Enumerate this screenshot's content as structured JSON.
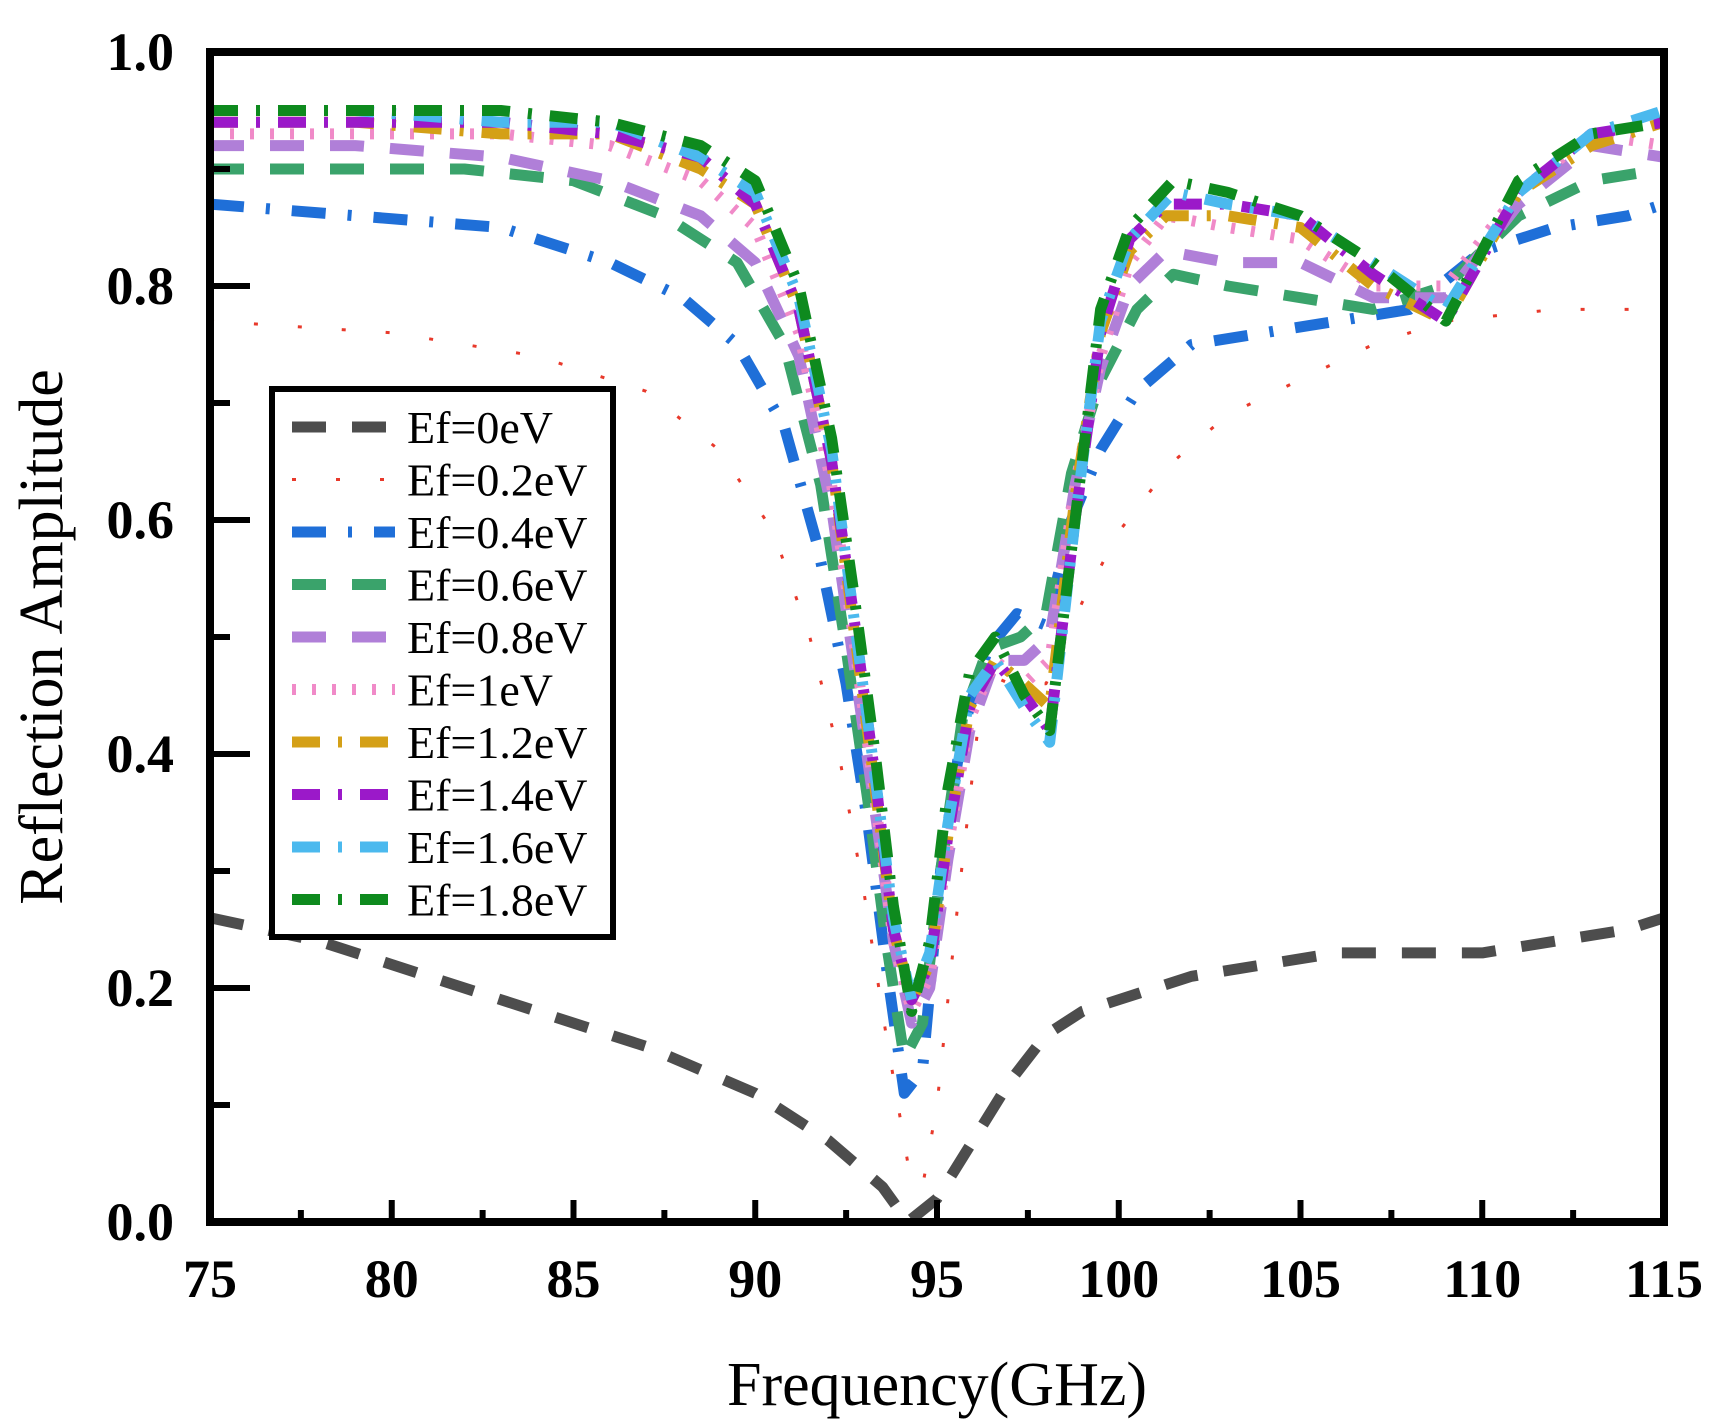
{
  "chart_data": {
    "type": "line",
    "title": "",
    "xlabel": "Frequency(GHz)",
    "ylabel": "Reflection Amplitude",
    "xlim": [
      75,
      115
    ],
    "ylim": [
      0.0,
      1.0
    ],
    "xticks": [
      75,
      80,
      85,
      90,
      95,
      100,
      105,
      110,
      115
    ],
    "xtick_labels": [
      "75",
      "80",
      "85",
      "90",
      "95",
      "100",
      "105",
      "110",
      "115"
    ],
    "yticks": [
      0.0,
      0.2,
      0.4,
      0.6,
      0.8,
      1.0
    ],
    "ytick_labels": [
      "0.0",
      "0.2",
      "0.4",
      "0.6",
      "0.8",
      "1.0"
    ],
    "grid": false,
    "legend_position": "center-left",
    "series": [
      {
        "name": "Ef=0eV",
        "color": "#4d4d4d",
        "dash": "dash",
        "points": [
          [
            75,
            0.26
          ],
          [
            78,
            0.24
          ],
          [
            81,
            0.21
          ],
          [
            84,
            0.18
          ],
          [
            87,
            0.15
          ],
          [
            90,
            0.11
          ],
          [
            92,
            0.07
          ],
          [
            93.5,
            0.03
          ],
          [
            94.2,
            0.0
          ],
          [
            95,
            0.02
          ],
          [
            96,
            0.07
          ],
          [
            97,
            0.12
          ],
          [
            98,
            0.16
          ],
          [
            99,
            0.18
          ],
          [
            100,
            0.19
          ],
          [
            102,
            0.21
          ],
          [
            104,
            0.22
          ],
          [
            106,
            0.23
          ],
          [
            108,
            0.23
          ],
          [
            110,
            0.23
          ],
          [
            112,
            0.24
          ],
          [
            114,
            0.25
          ],
          [
            115,
            0.26
          ]
        ]
      },
      {
        "name": "Ef=0.2eV",
        "color": "#e8392b",
        "dash": "dashdot-sparse",
        "points": [
          [
            75,
            0.77
          ],
          [
            80,
            0.76
          ],
          [
            84,
            0.74
          ],
          [
            87,
            0.71
          ],
          [
            89,
            0.66
          ],
          [
            90.5,
            0.59
          ],
          [
            91.5,
            0.5
          ],
          [
            92.3,
            0.4
          ],
          [
            93,
            0.28
          ],
          [
            93.6,
            0.16
          ],
          [
            94.2,
            0.05
          ],
          [
            94.6,
            0.03
          ],
          [
            95,
            0.1
          ],
          [
            95.6,
            0.28
          ],
          [
            96.3,
            0.47
          ],
          [
            97,
            0.46
          ],
          [
            98,
            0.46
          ],
          [
            99,
            0.53
          ],
          [
            100,
            0.59
          ],
          [
            101.5,
            0.65
          ],
          [
            103,
            0.69
          ],
          [
            105,
            0.72
          ],
          [
            107,
            0.75
          ],
          [
            109,
            0.77
          ],
          [
            112,
            0.78
          ],
          [
            115,
            0.78
          ]
        ]
      },
      {
        "name": "Ef=0.4eV",
        "color": "#1f6fd8",
        "dash": "longdashdot",
        "points": [
          [
            75,
            0.87
          ],
          [
            79,
            0.86
          ],
          [
            83,
            0.85
          ],
          [
            86,
            0.82
          ],
          [
            88,
            0.79
          ],
          [
            89.5,
            0.75
          ],
          [
            90.8,
            0.68
          ],
          [
            91.7,
            0.58
          ],
          [
            92.5,
            0.46
          ],
          [
            93.1,
            0.34
          ],
          [
            93.6,
            0.22
          ],
          [
            94.1,
            0.11
          ],
          [
            94.6,
            0.13
          ],
          [
            95.1,
            0.3
          ],
          [
            95.7,
            0.42
          ],
          [
            96.4,
            0.49
          ],
          [
            97.2,
            0.52
          ],
          [
            98,
            0.51
          ],
          [
            98.7,
            0.6
          ],
          [
            99.5,
            0.66
          ],
          [
            100.5,
            0.71
          ],
          [
            102,
            0.75
          ],
          [
            104,
            0.76
          ],
          [
            106,
            0.77
          ],
          [
            108,
            0.78
          ],
          [
            110,
            0.83
          ],
          [
            112,
            0.85
          ],
          [
            114,
            0.86
          ],
          [
            115,
            0.87
          ]
        ]
      },
      {
        "name": "Ef=0.6eV",
        "color": "#3aa36b",
        "dash": "dash",
        "points": [
          [
            75,
            0.9
          ],
          [
            79,
            0.9
          ],
          [
            82,
            0.9
          ],
          [
            85,
            0.89
          ],
          [
            87.5,
            0.86
          ],
          [
            89.5,
            0.82
          ],
          [
            90.8,
            0.75
          ],
          [
            91.8,
            0.63
          ],
          [
            92.5,
            0.49
          ],
          [
            93.1,
            0.36
          ],
          [
            93.6,
            0.24
          ],
          [
            94.1,
            0.14
          ],
          [
            94.6,
            0.17
          ],
          [
            95.1,
            0.3
          ],
          [
            95.7,
            0.43
          ],
          [
            96.4,
            0.49
          ],
          [
            97.3,
            0.5
          ],
          [
            98,
            0.52
          ],
          [
            98.7,
            0.64
          ],
          [
            99.5,
            0.72
          ],
          [
            100.5,
            0.78
          ],
          [
            101.5,
            0.81
          ],
          [
            103,
            0.8
          ],
          [
            105,
            0.79
          ],
          [
            107,
            0.78
          ],
          [
            109,
            0.8
          ],
          [
            111,
            0.86
          ],
          [
            113,
            0.89
          ],
          [
            115,
            0.9
          ]
        ]
      },
      {
        "name": "Ef=0.8eV",
        "color": "#b07fd8",
        "dash": "dash",
        "points": [
          [
            75,
            0.92
          ],
          [
            79,
            0.92
          ],
          [
            83,
            0.91
          ],
          [
            86,
            0.89
          ],
          [
            88.5,
            0.86
          ],
          [
            90,
            0.82
          ],
          [
            91.2,
            0.74
          ],
          [
            92.1,
            0.61
          ],
          [
            92.7,
            0.48
          ],
          [
            93.3,
            0.35
          ],
          [
            93.8,
            0.24
          ],
          [
            94.3,
            0.17
          ],
          [
            94.8,
            0.2
          ],
          [
            95.3,
            0.31
          ],
          [
            95.9,
            0.42
          ],
          [
            96.6,
            0.48
          ],
          [
            97.4,
            0.48
          ],
          [
            98.1,
            0.5
          ],
          [
            98.8,
            0.63
          ],
          [
            99.5,
            0.73
          ],
          [
            100.3,
            0.8
          ],
          [
            101.3,
            0.83
          ],
          [
            103,
            0.82
          ],
          [
            105,
            0.82
          ],
          [
            107,
            0.79
          ],
          [
            109,
            0.79
          ],
          [
            111,
            0.87
          ],
          [
            113,
            0.92
          ],
          [
            115,
            0.91
          ]
        ]
      },
      {
        "name": "Ef=1eV",
        "color": "#f08ac8",
        "dash": "dotted",
        "points": [
          [
            75,
            0.93
          ],
          [
            79,
            0.93
          ],
          [
            83,
            0.93
          ],
          [
            86,
            0.92
          ],
          [
            88.5,
            0.89
          ],
          [
            90,
            0.85
          ],
          [
            91.2,
            0.76
          ],
          [
            92.1,
            0.63
          ],
          [
            92.7,
            0.5
          ],
          [
            93.3,
            0.36
          ],
          [
            93.8,
            0.24
          ],
          [
            94.3,
            0.18
          ],
          [
            94.8,
            0.21
          ],
          [
            95.3,
            0.32
          ],
          [
            95.9,
            0.43
          ],
          [
            96.6,
            0.48
          ],
          [
            97.4,
            0.46
          ],
          [
            98.1,
            0.48
          ],
          [
            98.8,
            0.63
          ],
          [
            99.5,
            0.74
          ],
          [
            100.3,
            0.82
          ],
          [
            101.3,
            0.86
          ],
          [
            103,
            0.85
          ],
          [
            105,
            0.84
          ],
          [
            107,
            0.8
          ],
          [
            109,
            0.8
          ],
          [
            111,
            0.88
          ],
          [
            113,
            0.93
          ],
          [
            115,
            0.92
          ]
        ]
      },
      {
        "name": "Ef=1.2eV",
        "color": "#d4a017",
        "dash": "dashdot",
        "points": [
          [
            75,
            0.94
          ],
          [
            79,
            0.94
          ],
          [
            83,
            0.93
          ],
          [
            86,
            0.93
          ],
          [
            88.5,
            0.9
          ],
          [
            90,
            0.87
          ],
          [
            91.2,
            0.78
          ],
          [
            92.1,
            0.65
          ],
          [
            92.7,
            0.51
          ],
          [
            93.3,
            0.37
          ],
          [
            93.8,
            0.25
          ],
          [
            94.3,
            0.19
          ],
          [
            94.8,
            0.22
          ],
          [
            95.3,
            0.33
          ],
          [
            95.9,
            0.44
          ],
          [
            96.6,
            0.48
          ],
          [
            97.4,
            0.46
          ],
          [
            98.1,
            0.44
          ],
          [
            98.8,
            0.62
          ],
          [
            99.5,
            0.76
          ],
          [
            100.3,
            0.83
          ],
          [
            101.3,
            0.86
          ],
          [
            103,
            0.86
          ],
          [
            105,
            0.85
          ],
          [
            107,
            0.8
          ],
          [
            109,
            0.77
          ],
          [
            111,
            0.88
          ],
          [
            113,
            0.92
          ],
          [
            115,
            0.94
          ]
        ]
      },
      {
        "name": "Ef=1.4eV",
        "color": "#9b19c9",
        "dash": "dashdot",
        "points": [
          [
            75,
            0.94
          ],
          [
            79,
            0.94
          ],
          [
            83,
            0.94
          ],
          [
            86,
            0.93
          ],
          [
            88.5,
            0.91
          ],
          [
            90,
            0.87
          ],
          [
            91.2,
            0.78
          ],
          [
            92.1,
            0.65
          ],
          [
            92.7,
            0.52
          ],
          [
            93.3,
            0.38
          ],
          [
            93.8,
            0.25
          ],
          [
            94.3,
            0.19
          ],
          [
            94.8,
            0.22
          ],
          [
            95.3,
            0.33
          ],
          [
            95.9,
            0.44
          ],
          [
            96.6,
            0.48
          ],
          [
            97.4,
            0.45
          ],
          [
            98.1,
            0.42
          ],
          [
            98.8,
            0.6
          ],
          [
            99.5,
            0.76
          ],
          [
            100.3,
            0.84
          ],
          [
            101.3,
            0.87
          ],
          [
            103,
            0.87
          ],
          [
            105,
            0.86
          ],
          [
            107,
            0.81
          ],
          [
            109,
            0.77
          ],
          [
            111,
            0.88
          ],
          [
            113,
            0.93
          ],
          [
            115,
            0.94
          ]
        ]
      },
      {
        "name": "Ef=1.6eV",
        "color": "#4bb9ee",
        "dash": "dashdot",
        "points": [
          [
            75,
            0.95
          ],
          [
            79,
            0.95
          ],
          [
            83,
            0.94
          ],
          [
            86,
            0.94
          ],
          [
            88.5,
            0.91
          ],
          [
            90,
            0.88
          ],
          [
            91.2,
            0.79
          ],
          [
            92.1,
            0.66
          ],
          [
            92.7,
            0.52
          ],
          [
            93.3,
            0.38
          ],
          [
            93.8,
            0.26
          ],
          [
            94.3,
            0.19
          ],
          [
            94.8,
            0.23
          ],
          [
            95.3,
            0.34
          ],
          [
            95.9,
            0.45
          ],
          [
            96.6,
            0.48
          ],
          [
            97.4,
            0.44
          ],
          [
            98.1,
            0.41
          ],
          [
            98.8,
            0.6
          ],
          [
            99.5,
            0.77
          ],
          [
            100.3,
            0.84
          ],
          [
            101.5,
            0.88
          ],
          [
            103,
            0.87
          ],
          [
            105,
            0.86
          ],
          [
            107,
            0.82
          ],
          [
            109,
            0.78
          ],
          [
            111,
            0.88
          ],
          [
            113,
            0.93
          ],
          [
            115,
            0.95
          ]
        ]
      },
      {
        "name": "Ef=1.8eV",
        "color": "#0e8a1e",
        "dash": "dashdot",
        "points": [
          [
            75,
            0.95
          ],
          [
            79,
            0.95
          ],
          [
            83,
            0.95
          ],
          [
            86,
            0.94
          ],
          [
            88.5,
            0.92
          ],
          [
            90,
            0.89
          ],
          [
            91.2,
            0.8
          ],
          [
            92.1,
            0.67
          ],
          [
            92.7,
            0.54
          ],
          [
            93.3,
            0.4
          ],
          [
            93.8,
            0.27
          ],
          [
            94.3,
            0.18
          ],
          [
            94.8,
            0.24
          ],
          [
            95.3,
            0.37
          ],
          [
            95.9,
            0.47
          ],
          [
            96.6,
            0.5
          ],
          [
            97.4,
            0.45
          ],
          [
            98.1,
            0.42
          ],
          [
            98.8,
            0.6
          ],
          [
            99.5,
            0.78
          ],
          [
            100.3,
            0.85
          ],
          [
            101.5,
            0.89
          ],
          [
            103,
            0.88
          ],
          [
            105,
            0.86
          ],
          [
            107,
            0.82
          ],
          [
            109,
            0.77
          ],
          [
            111,
            0.89
          ],
          [
            113,
            0.93
          ],
          [
            115,
            0.94
          ]
        ]
      }
    ]
  }
}
